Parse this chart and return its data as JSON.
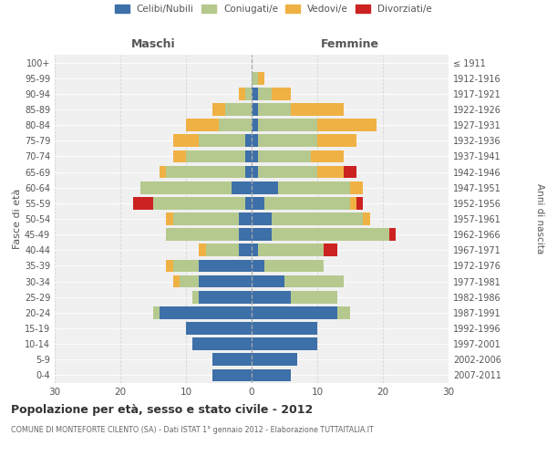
{
  "age_groups": [
    "0-4",
    "5-9",
    "10-14",
    "15-19",
    "20-24",
    "25-29",
    "30-34",
    "35-39",
    "40-44",
    "45-49",
    "50-54",
    "55-59",
    "60-64",
    "65-69",
    "70-74",
    "75-79",
    "80-84",
    "85-89",
    "90-94",
    "95-99",
    "100+"
  ],
  "birth_years": [
    "2007-2011",
    "2002-2006",
    "1997-2001",
    "1992-1996",
    "1987-1991",
    "1982-1986",
    "1977-1981",
    "1972-1976",
    "1967-1971",
    "1962-1966",
    "1957-1961",
    "1952-1956",
    "1947-1951",
    "1942-1946",
    "1937-1941",
    "1932-1936",
    "1927-1931",
    "1922-1926",
    "1917-1921",
    "1912-1916",
    "≤ 1911"
  ],
  "colors": {
    "celibe": "#3d6fa8",
    "coniugato": "#b5c98e",
    "vedovo": "#f0b144",
    "divorziato": "#cc2222"
  },
  "maschi": {
    "celibe": [
      6,
      6,
      9,
      10,
      14,
      8,
      8,
      8,
      2,
      2,
      2,
      1,
      3,
      1,
      1,
      1,
      0,
      0,
      0,
      0,
      0
    ],
    "coniugato": [
      0,
      0,
      0,
      0,
      1,
      1,
      3,
      4,
      5,
      11,
      10,
      14,
      14,
      12,
      9,
      7,
      5,
      4,
      1,
      0,
      0
    ],
    "vedovo": [
      0,
      0,
      0,
      0,
      0,
      0,
      1,
      1,
      1,
      0,
      1,
      0,
      0,
      1,
      2,
      4,
      5,
      2,
      1,
      0,
      0
    ],
    "divorziato": [
      0,
      0,
      0,
      0,
      0,
      0,
      0,
      0,
      0,
      0,
      0,
      3,
      0,
      0,
      0,
      0,
      0,
      0,
      0,
      0,
      0
    ]
  },
  "femmine": {
    "celibe": [
      6,
      7,
      10,
      10,
      13,
      6,
      5,
      2,
      1,
      3,
      3,
      2,
      4,
      1,
      1,
      1,
      1,
      1,
      1,
      0,
      0
    ],
    "coniugato": [
      0,
      0,
      0,
      0,
      2,
      7,
      9,
      9,
      10,
      18,
      14,
      13,
      11,
      9,
      8,
      9,
      9,
      5,
      2,
      1,
      0
    ],
    "vedovo": [
      0,
      0,
      0,
      0,
      0,
      0,
      0,
      0,
      0,
      0,
      1,
      1,
      2,
      4,
      5,
      6,
      9,
      8,
      3,
      1,
      0
    ],
    "divorziato": [
      0,
      0,
      0,
      0,
      0,
      0,
      0,
      0,
      2,
      1,
      0,
      1,
      0,
      2,
      0,
      0,
      0,
      0,
      0,
      0,
      0
    ]
  },
  "xlim": 30,
  "title": "Popolazione per età, sesso e stato civile - 2012",
  "subtitle": "COMUNE DI MONTEFORTE CILENTO (SA) - Dati ISTAT 1° gennaio 2012 - Elaborazione TUTTAITALIA.IT",
  "ylabel": "Fasce di età",
  "right_label": "Anni di nascita",
  "left_header": "Maschi",
  "right_header": "Femmine",
  "bg_color": "#f0f0f0",
  "grid_color": "#cccccc"
}
